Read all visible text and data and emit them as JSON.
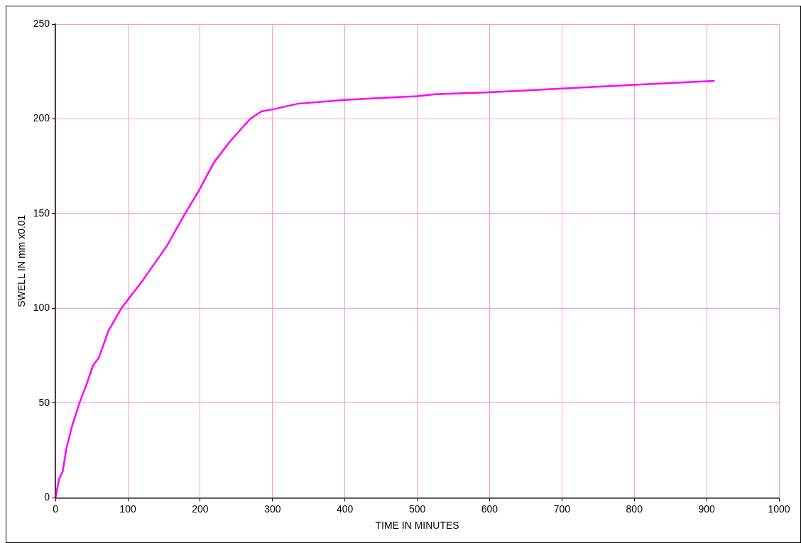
{
  "chart_data": {
    "type": "line",
    "xlabel": "TIME IN MINUTES",
    "ylabel": "SWELL IN mm x0.01",
    "x": [
      0,
      5,
      10,
      15,
      23,
      33,
      43,
      52,
      60,
      73,
      91,
      101,
      121,
      154,
      179,
      198,
      219,
      241,
      269,
      285,
      300,
      335,
      400,
      500,
      525,
      600,
      700,
      800,
      910
    ],
    "series": [
      {
        "color": "#ff00ff",
        "values": [
          0,
          10,
          14,
          26,
          38,
          50,
          60,
          70,
          74,
          88,
          100,
          105,
          115,
          133,
          150,
          162,
          177,
          188,
          200,
          204,
          205,
          208,
          210,
          212,
          213,
          214,
          216,
          218,
          220
        ]
      }
    ],
    "xlim": [
      0,
      1000
    ],
    "xticks": [
      0,
      100,
      200,
      300,
      400,
      500,
      600,
      700,
      800,
      900,
      1000
    ],
    "ylim": [
      0,
      250
    ],
    "yticks": [
      0,
      50,
      100,
      150,
      200,
      250
    ],
    "grid": true,
    "legend": false,
    "marker": "none",
    "line_style": "solid"
  }
}
